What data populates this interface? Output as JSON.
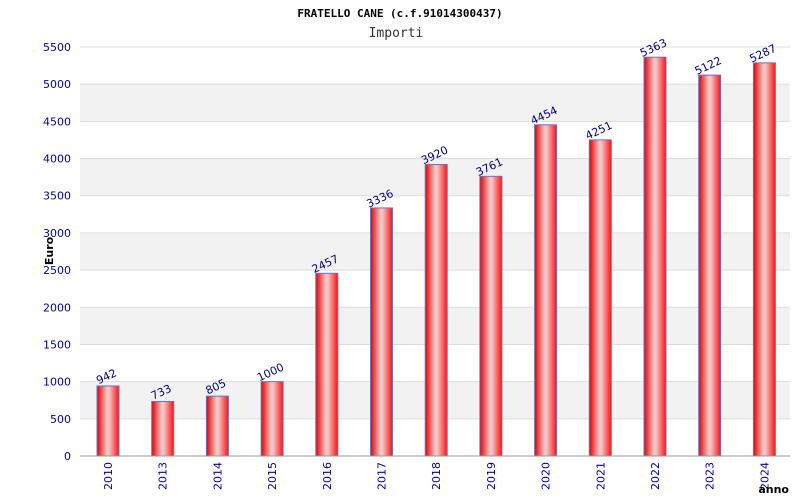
{
  "chart_data": {
    "type": "bar",
    "title": "FRATELLO CANE (c.f.91014300437)",
    "subtitle": "Importi",
    "xlabel": "anno",
    "ylabel": "Euro",
    "categories": [
      "2010",
      "2013",
      "2014",
      "2015",
      "2016",
      "2017",
      "2018",
      "2019",
      "2020",
      "2021",
      "2022",
      "2023",
      "2024"
    ],
    "values": [
      942,
      733,
      805,
      1000,
      2457,
      3336,
      3920,
      3761,
      4454,
      4251,
      5363,
      5122,
      5287
    ],
    "ylim": [
      0,
      5500
    ],
    "yticks": [
      "0",
      "500",
      "1000",
      "1500",
      "2000",
      "2500",
      "3000",
      "3500",
      "4000",
      "4500",
      "5000",
      "5500"
    ],
    "grid": "horizontal bands",
    "colors": {
      "bar_edge": "#e60000",
      "bar_center": "#f2b5b5",
      "bar_outline": "#7070c0",
      "band": "#f2f2f2",
      "tick_text": "#0000aa",
      "data_label": "#000080"
    }
  }
}
